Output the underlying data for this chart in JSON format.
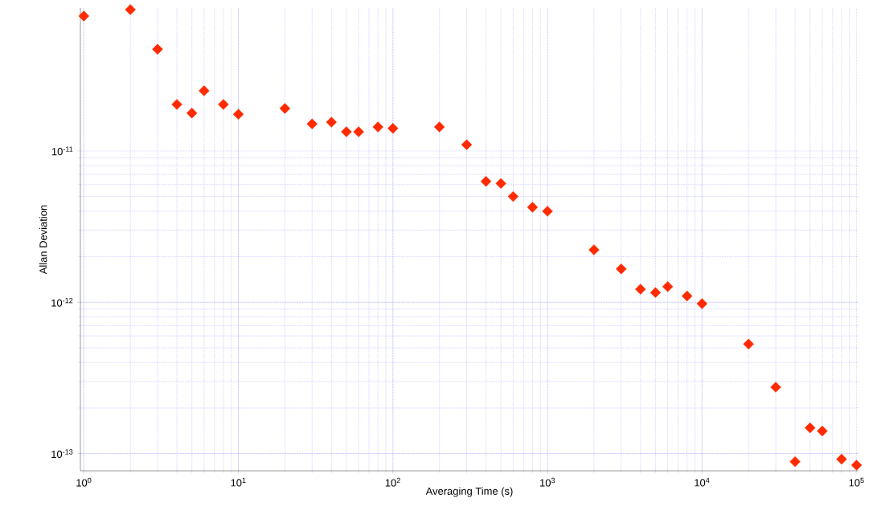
{
  "chart_data": {
    "type": "scatter",
    "xlabel": "Averaging Time (s)",
    "ylabel": "Allan Deviation",
    "log": "xy",
    "grid": true,
    "marker": "diamond",
    "xlim": [
      0.95,
      103000
    ],
    "ylim": [
      7.7e-14,
      8.8e-11
    ],
    "xticks": [
      {
        "value": 1,
        "label": "10$^{0}$"
      },
      {
        "value": 10,
        "label": "10$^{1}$"
      },
      {
        "value": 100,
        "label": "10$^{2}$"
      },
      {
        "value": 1000,
        "label": "10$^{3}$"
      },
      {
        "value": 10000,
        "label": "10$^{4}$"
      },
      {
        "value": 100000,
        "label": "10$^{5}$"
      }
    ],
    "yticks": [
      {
        "value": 1e-13,
        "label": "10$^{-13}$"
      },
      {
        "value": 1e-12,
        "label": "10$^{-12}$"
      },
      {
        "value": 1e-11,
        "label": "10$^{-11}$"
      }
    ],
    "series": [
      {
        "color": "#ff2a00",
        "x": [
          1,
          2,
          3,
          4,
          5,
          6,
          8,
          10,
          20,
          30,
          40,
          50,
          60,
          80,
          100,
          200,
          300,
          400,
          500,
          600,
          800,
          1000,
          2000,
          3000,
          4000,
          5000,
          6000,
          8000,
          10000,
          20000,
          30000,
          40000,
          50000,
          60000,
          80000,
          100000
        ],
        "values": [
          7.8e-11,
          8.6e-11,
          4.7e-11,
          2.03e-11,
          1.78e-11,
          2.5e-11,
          2.03e-11,
          1.75e-11,
          1.91e-11,
          1.51e-11,
          1.55e-11,
          1.34e-11,
          1.34e-11,
          1.44e-11,
          1.41e-11,
          1.44e-11,
          1.1e-11,
          6.3e-12,
          6.1e-12,
          5e-12,
          4.25e-12,
          4e-12,
          2.22e-12,
          1.66e-12,
          1.22e-12,
          1.16e-12,
          1.27e-12,
          1.1e-12,
          9.8e-13,
          5.3e-13,
          2.75e-13,
          8.85e-14,
          1.48e-13,
          1.41e-13,
          9.2e-14,
          8.4e-14
        ]
      }
    ]
  }
}
